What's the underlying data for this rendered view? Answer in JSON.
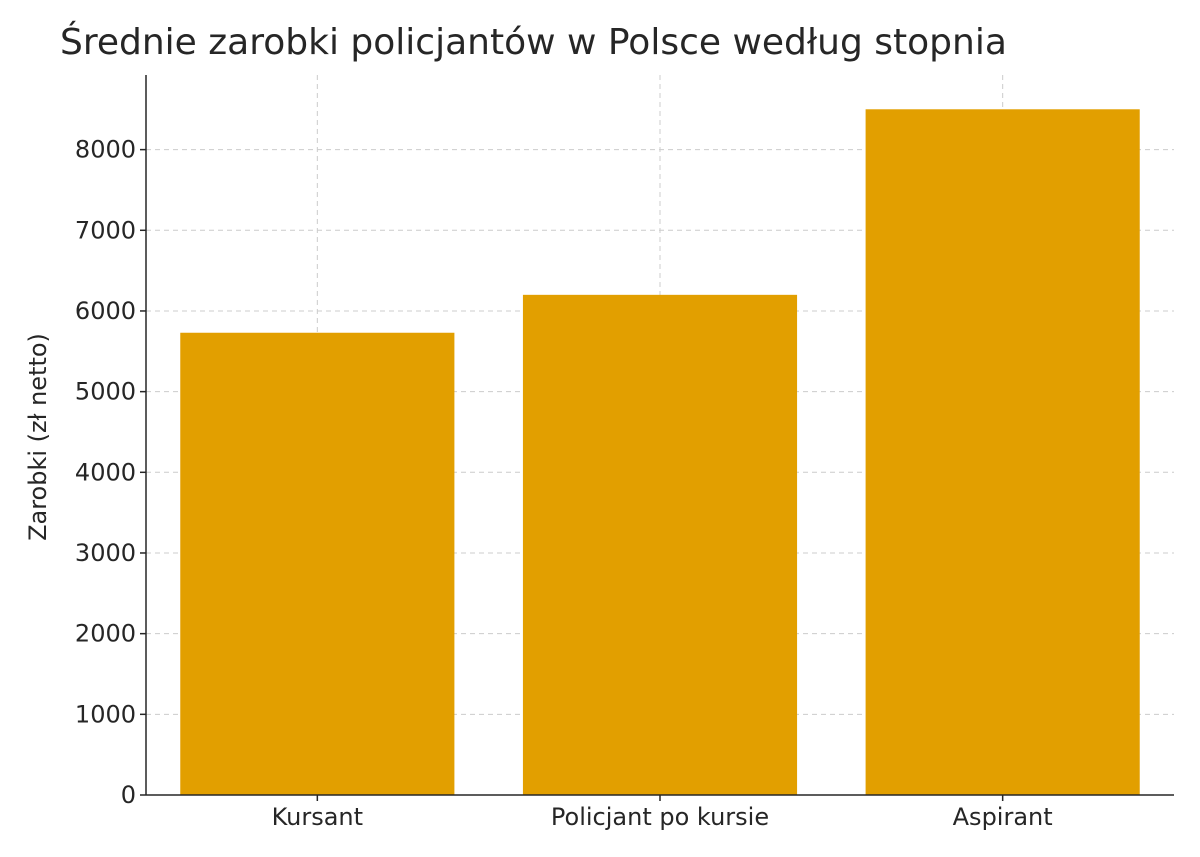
{
  "chart_data": {
    "type": "bar",
    "title": "Średnie zarobki policjantów w Polsce według stopnia",
    "xlabel": "",
    "ylabel": "Zarobki (zł netto)",
    "categories": [
      "Kursant",
      "Policjant po kursie",
      "Aspirant"
    ],
    "values": [
      5730,
      6200,
      8500
    ],
    "ylim": [
      0,
      8925
    ],
    "yticks": [
      0,
      1000,
      2000,
      3000,
      4000,
      5000,
      6000,
      7000,
      8000
    ],
    "grid": true,
    "legend": "none",
    "bar_color": "#E29F00"
  }
}
